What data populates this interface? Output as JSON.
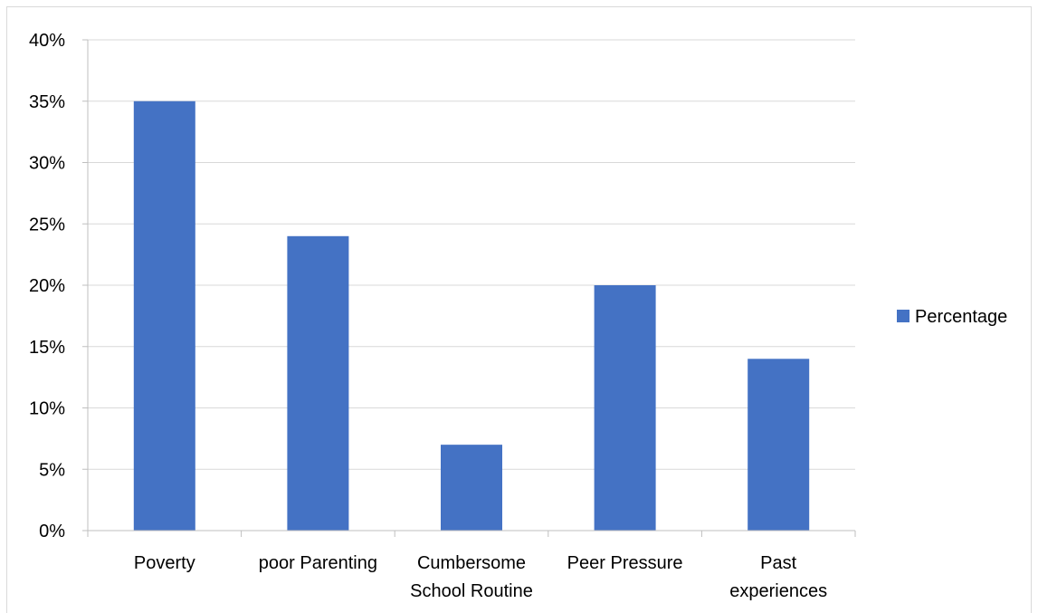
{
  "chart_data": {
    "type": "bar",
    "title": "",
    "xlabel": "",
    "ylabel": "",
    "categories": [
      [
        "Poverty"
      ],
      [
        "poor Parenting"
      ],
      [
        "Cumbersome",
        "School Routine"
      ],
      [
        "Peer Pressure"
      ],
      [
        "Past",
        "experiences"
      ]
    ],
    "series": [
      {
        "name": "Percentage",
        "values": [
          35,
          24,
          7,
          20,
          14
        ],
        "color": "#4472c4"
      }
    ],
    "ylim": [
      0,
      40
    ],
    "yticks": [
      0,
      5,
      10,
      15,
      20,
      25,
      30,
      35,
      40
    ],
    "ytick_labels": [
      "0%",
      "5%",
      "10%",
      "15%",
      "20%",
      "25%",
      "30%",
      "35%",
      "40%"
    ],
    "grid": true,
    "legend_position": "right",
    "gridline_color": "#d9d9d9",
    "axis_color": "#bfbfbf"
  }
}
